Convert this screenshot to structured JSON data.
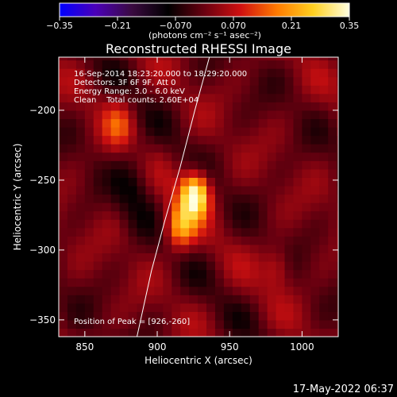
{
  "colorbar": {
    "min": -0.35,
    "max": 0.35,
    "ticks": [
      "-0.35",
      "-0.21",
      "-0.070",
      "0.070",
      "0.21",
      "0.35"
    ],
    "unit_label": "(photons cm⁻² s⁻¹ asec⁻²)",
    "stops": [
      "#0000ff",
      "#4b00b8",
      "#3a0a40",
      "#000000",
      "#6a0010",
      "#d01010",
      "#ff7a00",
      "#ffd020",
      "#ffffe0"
    ]
  },
  "chart_data": {
    "type": "heatmap",
    "title": "Reconstructed RHESSI Image",
    "xlabel": "Heliocentric X (arcsec)",
    "ylabel": "Heliocentric Y (arcsec)",
    "xlim": [
      832,
      1025
    ],
    "ylim": [
      -362,
      -162
    ],
    "xticks": [
      850,
      900,
      950,
      1000
    ],
    "yticks": [
      -200,
      -250,
      -300,
      -350
    ],
    "sources": [
      {
        "x": 926,
        "y": -260,
        "peak": 0.35
      },
      {
        "x": 916,
        "y": -283,
        "peak": 0.21
      },
      {
        "x": 873,
        "y": -209,
        "peak": 0.1
      },
      {
        "x": 983,
        "y": -312,
        "peak": 0.08
      }
    ],
    "limb_curve": [
      [
        936,
        -162
      ],
      [
        926,
        -200
      ],
      [
        916,
        -240
      ],
      [
        905,
        -280
      ],
      [
        896,
        -315
      ],
      [
        886,
        -362
      ]
    ]
  },
  "annotations": {
    "line1": "16-Sep-2014 18:23:20.000 to 18:29:20.000",
    "line2": "Detectors: 3F 6F 9F, Att 0",
    "line3": "Energy Range: 3.0 - 6.0 keV",
    "line4": "Clean    Total counts: 2.60E+04",
    "peak_label": "Position of Peak = [926,-260]"
  },
  "timestamp": "17-May-2022 06:37"
}
